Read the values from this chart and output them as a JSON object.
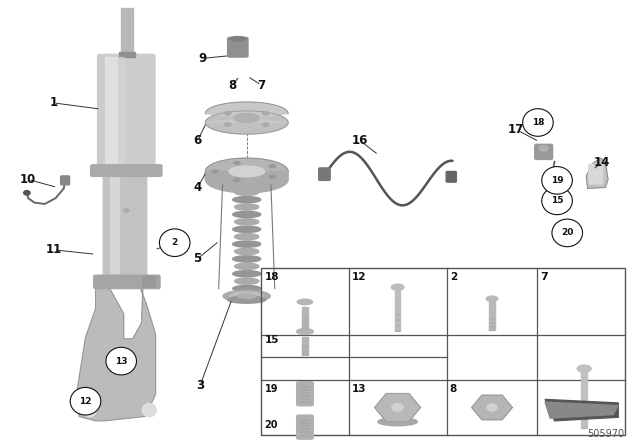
{
  "bg_color": "#ffffff",
  "diagram_id": "505970",
  "label_color": "#111111",
  "circle_color": "#111111",
  "line_color": "#333333"
}
